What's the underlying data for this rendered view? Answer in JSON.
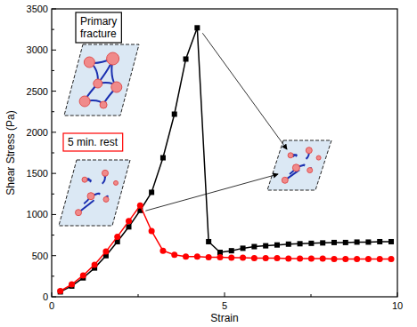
{
  "chart_data": {
    "type": "line",
    "x_label": "Strain",
    "y_label": "Shear Stress (Pa)",
    "xlim": [
      0,
      10
    ],
    "xticks": [
      0,
      5,
      10
    ],
    "ylim": [
      0,
      3500
    ],
    "yticks": [
      0,
      500,
      1000,
      1500,
      2000,
      2500,
      3000,
      3500
    ],
    "grid": false,
    "legend": "upper left",
    "x": [
      0.25,
      0.58,
      0.91,
      1.24,
      1.57,
      1.9,
      2.23,
      2.56,
      2.89,
      3.22,
      3.55,
      3.88,
      4.21,
      4.54,
      4.87,
      5.2,
      5.53,
      5.86,
      6.19,
      6.52,
      6.85,
      7.18,
      7.51,
      7.84,
      8.17,
      8.5,
      8.83,
      9.16,
      9.49,
      9.82
    ],
    "series": [
      {
        "name": "Primary fracture",
        "color": "#000000",
        "marker": "square",
        "values": [
          60,
          130,
          230,
          350,
          500,
          670,
          850,
          1050,
          1270,
          1690,
          2220,
          2890,
          3270,
          670,
          540,
          560,
          590,
          610,
          620,
          630,
          640,
          645,
          650,
          655,
          660,
          660,
          665,
          665,
          670,
          670
        ]
      },
      {
        "name": "5 min. rest",
        "color": "#ff0000",
        "marker": "circle",
        "values": [
          70,
          150,
          260,
          390,
          550,
          730,
          920,
          1110,
          800,
          560,
          510,
          490,
          490,
          480,
          480,
          475,
          475,
          470,
          470,
          470,
          465,
          465,
          465,
          465,
          460,
          460,
          460,
          460,
          460,
          460
        ]
      }
    ]
  }
}
